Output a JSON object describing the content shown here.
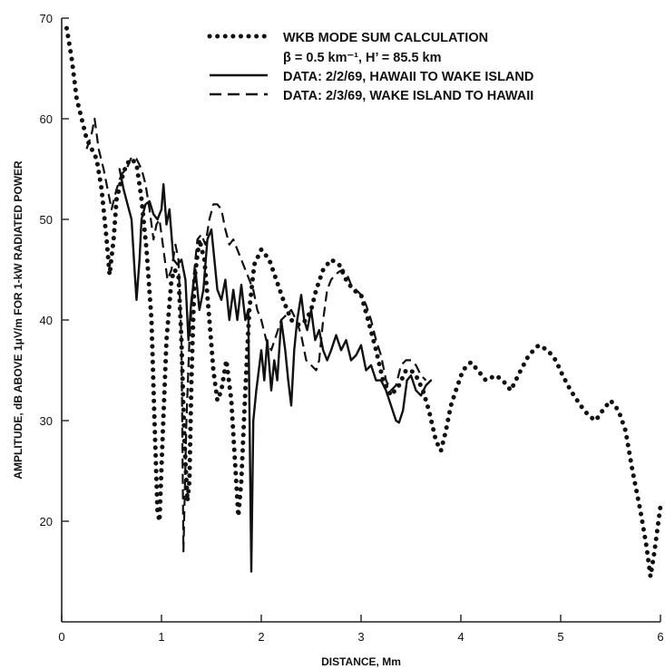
{
  "chart_data": {
    "type": "line",
    "xlabel": "DISTANCE, Mm",
    "ylabel": "AMPLITUDE, dB ABOVE 1μV/m FOR 1-kW RADIATED POWER",
    "xlim": [
      0,
      6
    ],
    "ylim": [
      10,
      70
    ],
    "x_ticks": [
      "0",
      "1",
      "2",
      "3",
      "4",
      "5",
      "6"
    ],
    "y_ticks": [
      "20",
      "30",
      "40",
      "50",
      "60",
      "70"
    ],
    "grid": false,
    "legend_position": "top-right",
    "legend": [
      {
        "label": "WKB MODE SUM CALCULATION",
        "style": "dotted"
      },
      {
        "label": "β = 0.5 km⁻¹, H’ = 85.5 km",
        "style": "none"
      },
      {
        "label": "DATA:  2/2/69, HAWAII TO WAKE ISLAND",
        "style": "solid"
      },
      {
        "label": "DATA:  2/3/69, WAKE ISLAND TO HAWAII",
        "style": "dashed"
      }
    ],
    "series": [
      {
        "name": "WKB MODE SUM CALCULATION",
        "style": "dotted",
        "color": "#111111",
        "points": [
          [
            0.05,
            69
          ],
          [
            0.1,
            66
          ],
          [
            0.15,
            62
          ],
          [
            0.2,
            60
          ],
          [
            0.25,
            58
          ],
          [
            0.3,
            57
          ],
          [
            0.35,
            56
          ],
          [
            0.4,
            53
          ],
          [
            0.45,
            48
          ],
          [
            0.48,
            44.5
          ],
          [
            0.52,
            48
          ],
          [
            0.55,
            52
          ],
          [
            0.6,
            54
          ],
          [
            0.65,
            55.5
          ],
          [
            0.7,
            56
          ],
          [
            0.75,
            55.5
          ],
          [
            0.8,
            52
          ],
          [
            0.85,
            47
          ],
          [
            0.9,
            40
          ],
          [
            0.93,
            30
          ],
          [
            0.96,
            21
          ],
          [
            0.98,
            20
          ],
          [
            1.01,
            28
          ],
          [
            1.05,
            38
          ],
          [
            1.1,
            44
          ],
          [
            1.13,
            45
          ],
          [
            1.17,
            44.5
          ],
          [
            1.2,
            38
          ],
          [
            1.23,
            28
          ],
          [
            1.26,
            22
          ],
          [
            1.28,
            24
          ],
          [
            1.3,
            34
          ],
          [
            1.33,
            44
          ],
          [
            1.38,
            48
          ],
          [
            1.43,
            46
          ],
          [
            1.48,
            40
          ],
          [
            1.52,
            35
          ],
          [
            1.56,
            32
          ],
          [
            1.6,
            33
          ],
          [
            1.65,
            36
          ],
          [
            1.7,
            32
          ],
          [
            1.73,
            27
          ],
          [
            1.77,
            20.5
          ],
          [
            1.8,
            24
          ],
          [
            1.84,
            33
          ],
          [
            1.88,
            41
          ],
          [
            1.93,
            45.5
          ],
          [
            2.0,
            47
          ],
          [
            2.08,
            46
          ],
          [
            2.15,
            44
          ],
          [
            2.22,
            42
          ],
          [
            2.3,
            40
          ],
          [
            2.38,
            39.5
          ],
          [
            2.45,
            40
          ],
          [
            2.5,
            41
          ],
          [
            2.55,
            43
          ],
          [
            2.62,
            45
          ],
          [
            2.7,
            46
          ],
          [
            2.78,
            45.5
          ],
          [
            2.85,
            44
          ],
          [
            2.92,
            43
          ],
          [
            3.0,
            42.5
          ],
          [
            3.07,
            40
          ],
          [
            3.15,
            37
          ],
          [
            3.22,
            34
          ],
          [
            3.3,
            32.5
          ],
          [
            3.38,
            33.5
          ],
          [
            3.45,
            35
          ],
          [
            3.5,
            35
          ],
          [
            3.55,
            34.5
          ],
          [
            3.62,
            33
          ],
          [
            3.68,
            31
          ],
          [
            3.75,
            28
          ],
          [
            3.8,
            27
          ],
          [
            3.85,
            29
          ],
          [
            3.9,
            31.5
          ],
          [
            3.95,
            33
          ],
          [
            4.02,
            35
          ],
          [
            4.1,
            35.8
          ],
          [
            4.17,
            35
          ],
          [
            4.25,
            34
          ],
          [
            4.35,
            34.5
          ],
          [
            4.42,
            34
          ],
          [
            4.5,
            33
          ],
          [
            4.6,
            35
          ],
          [
            4.68,
            36.5
          ],
          [
            4.78,
            37.5
          ],
          [
            4.87,
            37
          ],
          [
            4.95,
            36
          ],
          [
            5.02,
            34.5
          ],
          [
            5.1,
            33
          ],
          [
            5.2,
            31.5
          ],
          [
            5.28,
            30.5
          ],
          [
            5.35,
            30
          ],
          [
            5.42,
            31
          ],
          [
            5.5,
            32
          ],
          [
            5.58,
            31
          ],
          [
            5.65,
            29
          ],
          [
            5.72,
            25
          ],
          [
            5.8,
            21
          ],
          [
            5.86,
            17.5
          ],
          [
            5.9,
            14.5
          ],
          [
            5.94,
            17
          ],
          [
            5.98,
            20
          ],
          [
            6.0,
            21.5
          ]
        ]
      },
      {
        "name": "DATA:  2/2/69, HAWAII TO WAKE ISLAND",
        "style": "solid",
        "color": "#111111",
        "points": [
          [
            0.58,
            55
          ],
          [
            0.62,
            53
          ],
          [
            0.66,
            51.5
          ],
          [
            0.7,
            50
          ],
          [
            0.73,
            45
          ],
          [
            0.75,
            42
          ],
          [
            0.78,
            46
          ],
          [
            0.8,
            50
          ],
          [
            0.84,
            51.5
          ],
          [
            0.88,
            51.8
          ],
          [
            0.92,
            50.5
          ],
          [
            0.96,
            50
          ],
          [
            1.0,
            51
          ],
          [
            1.02,
            53.5
          ],
          [
            1.05,
            49.5
          ],
          [
            1.08,
            51
          ],
          [
            1.12,
            46
          ],
          [
            1.16,
            45.5
          ],
          [
            1.2,
            46
          ],
          [
            1.24,
            44
          ],
          [
            1.27,
            38
          ],
          [
            1.3,
            42
          ],
          [
            1.34,
            45
          ],
          [
            1.38,
            41
          ],
          [
            1.42,
            43
          ],
          [
            1.46,
            48
          ],
          [
            1.5,
            49
          ],
          [
            1.53,
            46
          ],
          [
            1.56,
            43
          ],
          [
            1.6,
            42
          ],
          [
            1.64,
            44
          ],
          [
            1.68,
            40
          ],
          [
            1.72,
            43
          ],
          [
            1.76,
            40
          ],
          [
            1.8,
            43.5
          ],
          [
            1.84,
            40
          ],
          [
            1.87,
            41
          ],
          [
            1.9,
            15
          ],
          [
            1.92,
            30
          ],
          [
            1.95,
            33
          ],
          [
            2.0,
            37
          ],
          [
            2.03,
            34
          ],
          [
            2.06,
            38
          ],
          [
            2.1,
            33
          ],
          [
            2.13,
            36
          ],
          [
            2.16,
            34
          ],
          [
            2.2,
            40
          ],
          [
            2.24,
            37
          ],
          [
            2.27,
            34
          ],
          [
            2.3,
            31.5
          ],
          [
            2.33,
            37
          ],
          [
            2.36,
            40
          ],
          [
            2.4,
            42.5
          ],
          [
            2.43,
            40
          ],
          [
            2.46,
            39
          ],
          [
            2.5,
            41
          ],
          [
            2.54,
            38
          ],
          [
            2.58,
            39
          ],
          [
            2.62,
            37
          ],
          [
            2.66,
            36
          ],
          [
            2.7,
            37
          ],
          [
            2.75,
            38.5
          ],
          [
            2.8,
            37
          ],
          [
            2.85,
            38
          ],
          [
            2.9,
            36
          ],
          [
            2.95,
            36.5
          ],
          [
            3.0,
            37.5
          ],
          [
            3.05,
            35
          ],
          [
            3.1,
            35.5
          ],
          [
            3.15,
            34
          ],
          [
            3.2,
            34
          ],
          [
            3.25,
            33
          ],
          [
            3.3,
            31.5
          ],
          [
            3.35,
            30
          ],
          [
            3.38,
            29.8
          ],
          [
            3.42,
            31
          ],
          [
            3.46,
            34
          ],
          [
            3.5,
            34.5
          ],
          [
            3.55,
            33
          ],
          [
            3.6,
            32.5
          ],
          [
            3.65,
            33.5
          ],
          [
            3.7,
            34
          ]
        ]
      },
      {
        "name": "DATA:  2/3/69, WAKE ISLAND TO HAWAII",
        "style": "dashed",
        "color": "#111111",
        "points": [
          [
            0.25,
            57
          ],
          [
            0.3,
            58.5
          ],
          [
            0.33,
            60
          ],
          [
            0.37,
            57
          ],
          [
            0.42,
            55
          ],
          [
            0.46,
            53
          ],
          [
            0.5,
            51
          ],
          [
            0.55,
            53
          ],
          [
            0.6,
            54.5
          ],
          [
            0.65,
            55
          ],
          [
            0.7,
            56.2
          ],
          [
            0.75,
            56
          ],
          [
            0.8,
            55
          ],
          [
            0.84,
            53.5
          ],
          [
            0.88,
            51
          ],
          [
            0.92,
            48
          ],
          [
            0.95,
            49.5
          ],
          [
            0.98,
            50
          ],
          [
            1.02,
            47
          ],
          [
            1.06,
            44
          ],
          [
            1.1,
            45
          ],
          [
            1.14,
            47.5
          ],
          [
            1.17,
            46
          ],
          [
            1.2,
            38
          ],
          [
            1.22,
            17
          ],
          [
            1.25,
            30
          ],
          [
            1.28,
            38
          ],
          [
            1.32,
            44
          ],
          [
            1.36,
            48
          ],
          [
            1.4,
            48.5
          ],
          [
            1.44,
            47.5
          ],
          [
            1.48,
            50
          ],
          [
            1.52,
            51.5
          ],
          [
            1.56,
            51.5
          ],
          [
            1.6,
            51
          ],
          [
            1.64,
            49
          ],
          [
            1.68,
            47.5
          ],
          [
            1.72,
            48
          ],
          [
            1.76,
            47
          ],
          [
            1.8,
            46
          ],
          [
            1.84,
            45
          ],
          [
            1.88,
            44
          ],
          [
            1.92,
            43
          ],
          [
            1.96,
            41
          ],
          [
            2.0,
            40
          ],
          [
            2.05,
            38
          ],
          [
            2.1,
            37
          ],
          [
            2.15,
            38.5
          ],
          [
            2.2,
            40
          ],
          [
            2.25,
            40.5
          ],
          [
            2.3,
            41
          ],
          [
            2.35,
            40
          ],
          [
            2.4,
            38.5
          ],
          [
            2.45,
            36
          ],
          [
            2.5,
            35.5
          ],
          [
            2.55,
            35
          ],
          [
            2.58,
            36
          ],
          [
            2.62,
            40
          ],
          [
            2.66,
            43
          ],
          [
            2.7,
            44
          ],
          [
            2.74,
            44.5
          ],
          [
            2.78,
            44.8
          ],
          [
            2.82,
            45
          ],
          [
            2.86,
            44.5
          ],
          [
            2.9,
            43.5
          ],
          [
            2.95,
            43
          ],
          [
            3.0,
            42.5
          ],
          [
            3.05,
            41.5
          ],
          [
            3.1,
            40
          ],
          [
            3.15,
            38
          ],
          [
            3.2,
            36.5
          ],
          [
            3.25,
            34
          ],
          [
            3.3,
            33
          ],
          [
            3.35,
            33.5
          ],
          [
            3.4,
            35.5
          ],
          [
            3.45,
            36
          ],
          [
            3.5,
            36
          ],
          [
            3.55,
            35.5
          ],
          [
            3.6,
            34.5
          ],
          [
            3.65,
            34
          ]
        ]
      }
    ]
  }
}
